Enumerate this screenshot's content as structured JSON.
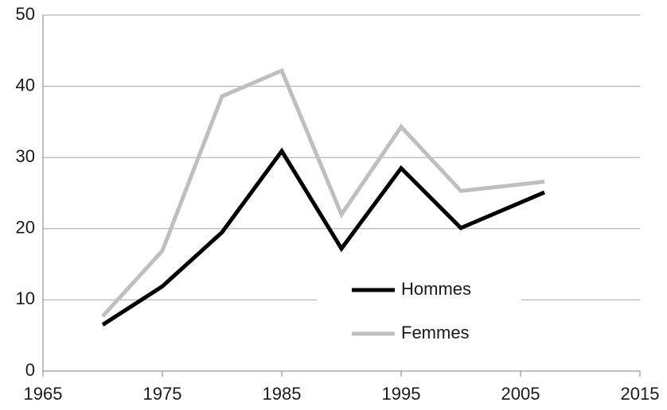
{
  "chart_data": {
    "type": "line",
    "x": [
      1970,
      1975,
      1980,
      1985,
      1990,
      1995,
      2000,
      2007
    ],
    "series": [
      {
        "name": "Hommes",
        "color": "#000000",
        "values": [
          6.5,
          11.9,
          19.5,
          30.9,
          17.2,
          28.5,
          20.1,
          25.1
        ]
      },
      {
        "name": "Femmes",
        "color": "#bfbfbf",
        "values": [
          7.7,
          16.9,
          38.6,
          42.2,
          22.0,
          34.3,
          25.3,
          26.6
        ]
      }
    ],
    "xlim": [
      1965,
      2015
    ],
    "xticks": [
      1965,
      1975,
      1985,
      1995,
      2005,
      2015
    ],
    "ylim": [
      0,
      50
    ],
    "yticks": [
      0,
      10,
      20,
      30,
      40,
      50
    ],
    "grid": true,
    "legend": "bottom-center"
  }
}
